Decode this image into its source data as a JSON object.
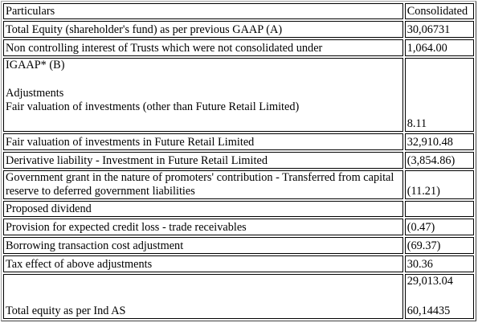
{
  "table": {
    "header": {
      "particulars": "Particulars",
      "consolidated": "Consolidated"
    },
    "rows": [
      {
        "particulars": "Total Equity (shareholder's fund) as per previous GAAP (A)",
        "value": "30,06731"
      },
      {
        "particulars": "Non controlling interest of Trusts which were not consolidated under",
        "value": "1,064.00"
      },
      {
        "particulars_lines": [
          "IGAAP* (B)",
          "Adjustments",
          "Fair valuation of investments (other than Future Retail Limited)"
        ],
        "value": "8.11"
      },
      {
        "particulars": "Fair valuation of investments in Future Retail Limited",
        "value": "32,910.48"
      },
      {
        "particulars": "Derivative liability - Investment in Future Retail Limited",
        "value": "(3,854.86)"
      },
      {
        "particulars": "Government grant in the nature of promoters' contribution - Transferred from capital reserve to deferred government liabilities",
        "value": "(11.21)"
      },
      {
        "particulars": "Proposed dividend",
        "value": ""
      },
      {
        "particulars": "Provision for expected credit loss - trade receivables",
        "value": "(0.47)"
      },
      {
        "particulars": "Borrowing transaction cost adjustment",
        "value": "(69.37)"
      },
      {
        "particulars": "Tax effect of above adjustments",
        "value": "30.36"
      },
      {
        "particulars": "Total equity as per Ind AS",
        "value_lines": [
          "29,013.04",
          "60,14435"
        ]
      }
    ]
  }
}
